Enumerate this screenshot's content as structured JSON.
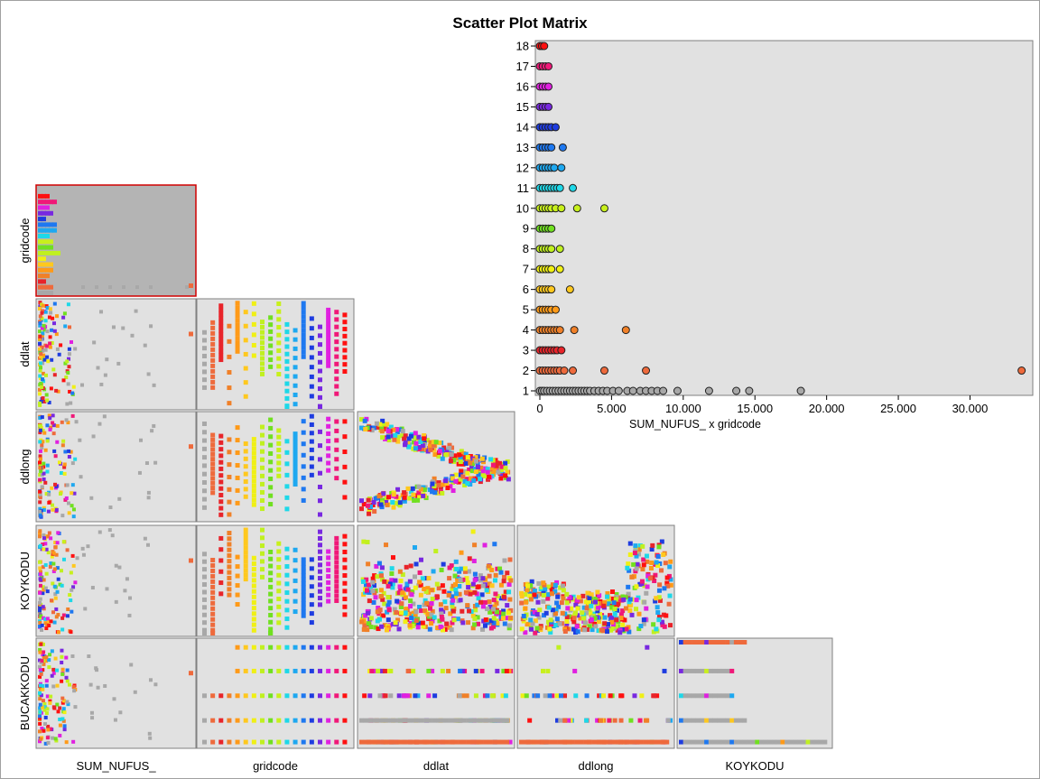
{
  "title": "Scatter Plot Matrix",
  "variables": [
    "SUM_NUFUS_",
    "gridcode",
    "ddlat",
    "ddlong",
    "KOYKODU",
    "BUCAKKODU"
  ],
  "colors": {
    "panel_bg": "#e1e1e1",
    "panel_border": "#808080",
    "selected_border": "#d00000",
    "gridcode_palette": [
      "#a8a8a8",
      "#ee6a3c",
      "#e8242a",
      "#f08028",
      "#ff9a18",
      "#ffc81e",
      "#f0f014",
      "#c0f020",
      "#70e020",
      "#c8f01c",
      "#1ed8e8",
      "#1ea8f0",
      "#1e78f0",
      "#1e3ce0",
      "#7828e0",
      "#e020e0",
      "#f01878",
      "#ff1010"
    ]
  },
  "chart_data": {
    "type": "scatter",
    "title": "",
    "xlabel": "SUM_NUFUS_ x gridcode",
    "ylabel": "",
    "xlim": [
      0,
      34000
    ],
    "ylim": [
      1,
      18
    ],
    "x_ticks": [
      "0",
      "5.000",
      "10.000",
      "15.000",
      "20.000",
      "25.000",
      "30.000"
    ],
    "y_ticks": [
      "1",
      "2",
      "3",
      "4",
      "5",
      "6",
      "7",
      "8",
      "9",
      "10",
      "11",
      "12",
      "13",
      "14",
      "15",
      "16",
      "17",
      "18"
    ],
    "series": [
      {
        "gridcode": 1,
        "x": [
          0,
          150,
          300,
          500,
          700,
          900,
          1100,
          1300,
          1500,
          1700,
          1900,
          2100,
          2300,
          2500,
          2700,
          2900,
          3100,
          3300,
          3500,
          3800,
          4100,
          4400,
          4700,
          5100,
          5500,
          6100,
          6500,
          7000,
          7400,
          7800,
          8200,
          8600,
          9600,
          11800,
          13700,
          14600,
          18200
        ]
      },
      {
        "gridcode": 2,
        "x": [
          0,
          200,
          400,
          600,
          800,
          1000,
          1200,
          1400,
          1700,
          2300,
          4500,
          7400,
          33600
        ]
      },
      {
        "gridcode": 3,
        "x": [
          0,
          200,
          400,
          600,
          800,
          1000,
          1200,
          1500
        ]
      },
      {
        "gridcode": 4,
        "x": [
          0,
          200,
          400,
          600,
          800,
          1000,
          1200,
          1400,
          2400,
          6000
        ]
      },
      {
        "gridcode": 5,
        "x": [
          0,
          200,
          400,
          600,
          800,
          1100
        ]
      },
      {
        "gridcode": 6,
        "x": [
          0,
          200,
          400,
          600,
          800,
          2100
        ]
      },
      {
        "gridcode": 7,
        "x": [
          0,
          200,
          400,
          600,
          800,
          1400
        ]
      },
      {
        "gridcode": 8,
        "x": [
          0,
          200,
          400,
          600,
          800,
          1400
        ]
      },
      {
        "gridcode": 9,
        "x": [
          0,
          200,
          400,
          600,
          800
        ]
      },
      {
        "gridcode": 10,
        "x": [
          0,
          200,
          400,
          600,
          800,
          1100,
          1500,
          2600,
          4500
        ]
      },
      {
        "gridcode": 11,
        "x": [
          0,
          200,
          400,
          600,
          800,
          1000,
          1200,
          1400,
          2300
        ]
      },
      {
        "gridcode": 12,
        "x": [
          0,
          200,
          400,
          600,
          800,
          1000,
          1500
        ]
      },
      {
        "gridcode": 13,
        "x": [
          0,
          200,
          400,
          600,
          800,
          1600
        ]
      },
      {
        "gridcode": 14,
        "x": [
          0,
          200,
          400,
          600,
          800,
          1100
        ]
      },
      {
        "gridcode": 15,
        "x": [
          0,
          200,
          400,
          600
        ]
      },
      {
        "gridcode": 16,
        "x": [
          0,
          200,
          400,
          600
        ]
      },
      {
        "gridcode": 17,
        "x": [
          0,
          200,
          400,
          600
        ]
      },
      {
        "gridcode": 18,
        "x": [
          0,
          150,
          300
        ]
      }
    ]
  }
}
